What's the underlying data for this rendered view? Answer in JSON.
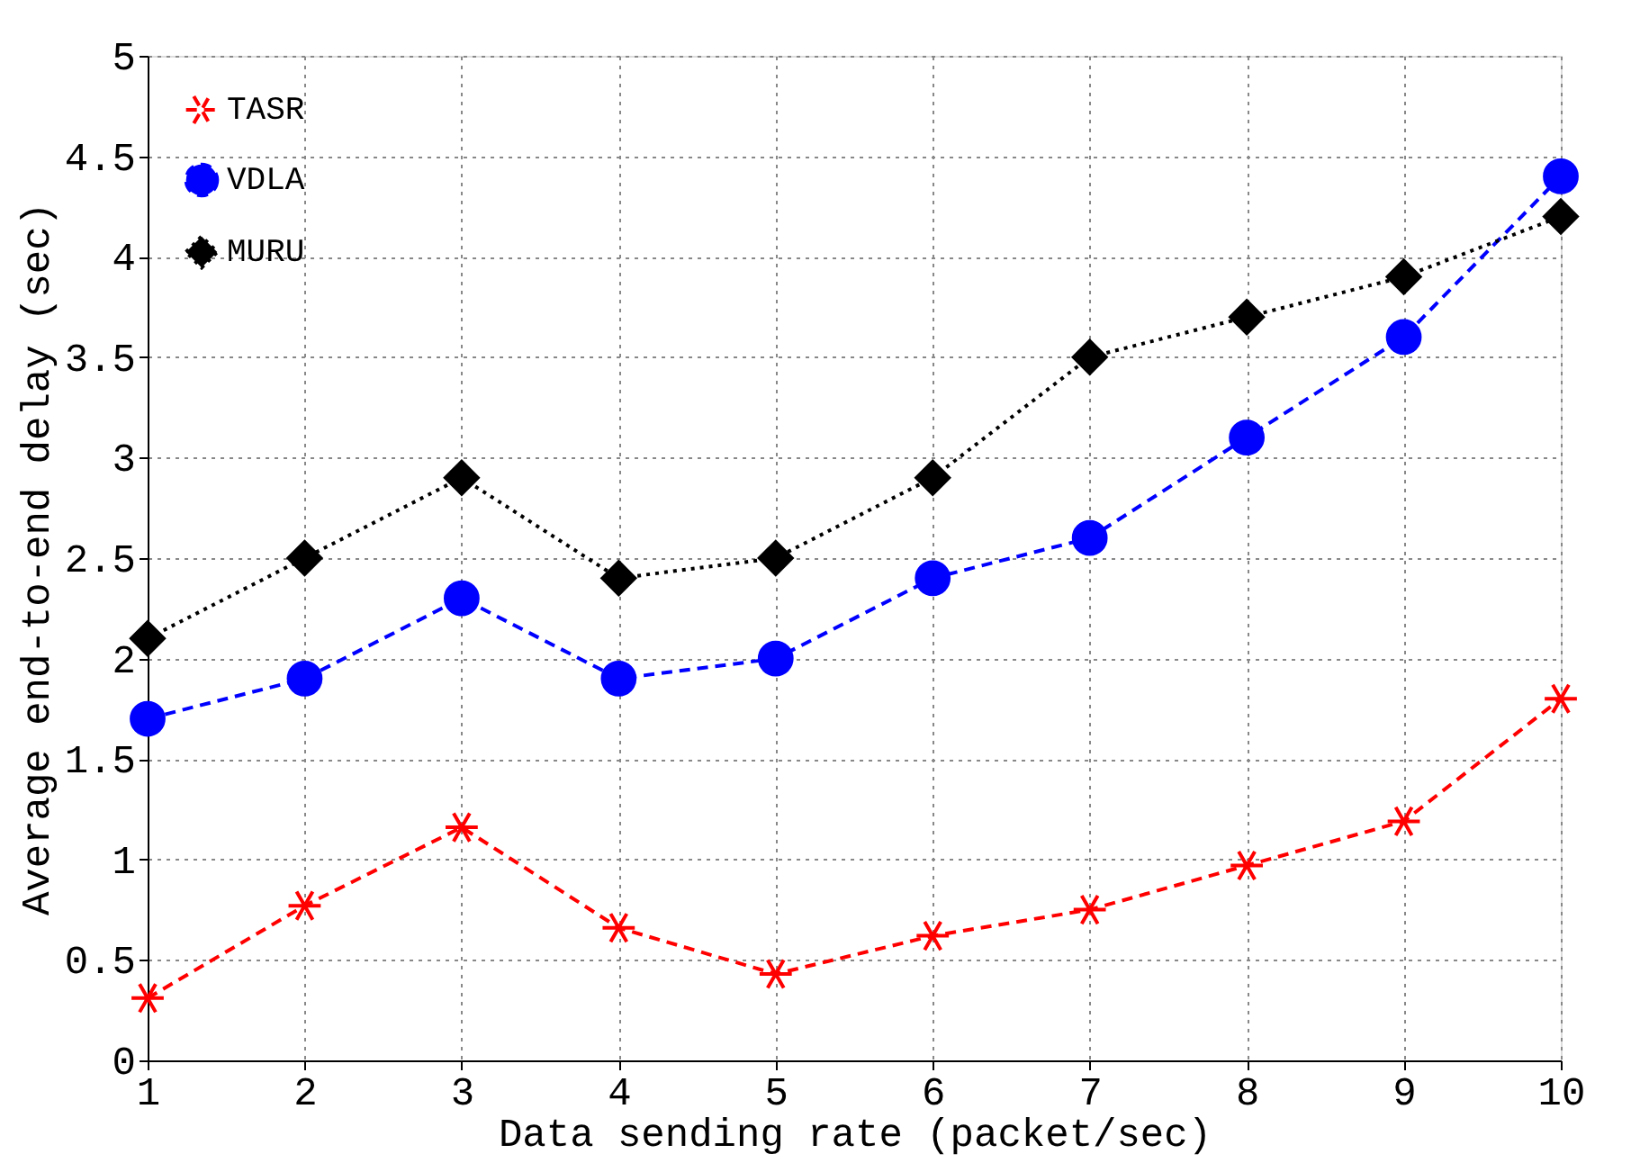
{
  "chart_data": {
    "type": "line",
    "xlabel": "Data sending rate (packet/sec)",
    "ylabel": "Average end-to-end delay (sec)",
    "x": [
      1,
      2,
      3,
      4,
      5,
      6,
      7,
      8,
      9,
      10
    ],
    "series": [
      {
        "name": "TASR",
        "color": "#ff0000",
        "marker": "cross",
        "line_style": "dashed",
        "values": [
          0.31,
          0.77,
          1.16,
          0.66,
          0.43,
          0.62,
          0.75,
          0.97,
          1.19,
          1.8
        ]
      },
      {
        "name": "VDLA",
        "color": "#0000ff",
        "marker": "circle",
        "line_style": "dashed",
        "values": [
          1.7,
          1.9,
          2.3,
          1.9,
          2.0,
          2.4,
          2.6,
          3.1,
          3.6,
          4.4
        ]
      },
      {
        "name": "MURU",
        "color": "#000000",
        "marker": "diamond",
        "line_style": "dotted",
        "values": [
          2.1,
          2.5,
          2.9,
          2.4,
          2.5,
          2.9,
          3.5,
          3.7,
          3.9,
          4.2
        ]
      }
    ],
    "xlim": [
      1,
      10
    ],
    "xticks": [
      1,
      2,
      3,
      4,
      5,
      6,
      7,
      8,
      9,
      10
    ],
    "ylim": [
      0,
      5
    ],
    "yticks": [
      0,
      0.5,
      1,
      1.5,
      2,
      2.5,
      3,
      3.5,
      4,
      4.5,
      5
    ],
    "grid": true,
    "legend": "top left"
  }
}
